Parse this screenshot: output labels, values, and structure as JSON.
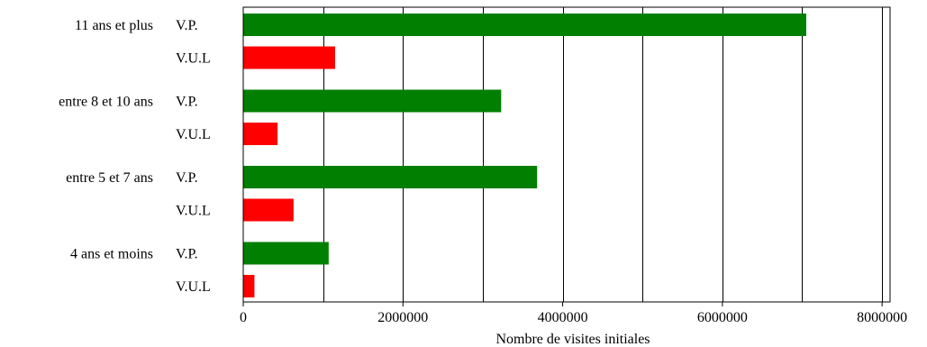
{
  "chart_data": {
    "type": "bar",
    "orientation": "horizontal",
    "xlabel": "Nombre de visites initiales",
    "xlim": [
      0,
      8100000
    ],
    "x_ticks": [
      0,
      2000000,
      4000000,
      6000000,
      8000000
    ],
    "x_tick_labels": [
      "0",
      "2000000",
      "4000000",
      "6000000",
      "8000000"
    ],
    "x_gridlines": [
      1000000,
      2000000,
      3000000,
      4000000,
      5000000,
      6000000,
      7000000,
      8000000
    ],
    "grid": true,
    "categories": [
      "11 ans et plus",
      "entre 8 et 10 ans",
      "entre 5 et 7 ans",
      "4 ans et moins"
    ],
    "series": [
      {
        "label": "V.P.",
        "color": "#007f00",
        "values": [
          7050000,
          3230000,
          3680000,
          1070000
        ]
      },
      {
        "label": "V.U.L",
        "color": "#ff0000",
        "values": [
          1150000,
          430000,
          630000,
          140000
        ]
      }
    ]
  }
}
